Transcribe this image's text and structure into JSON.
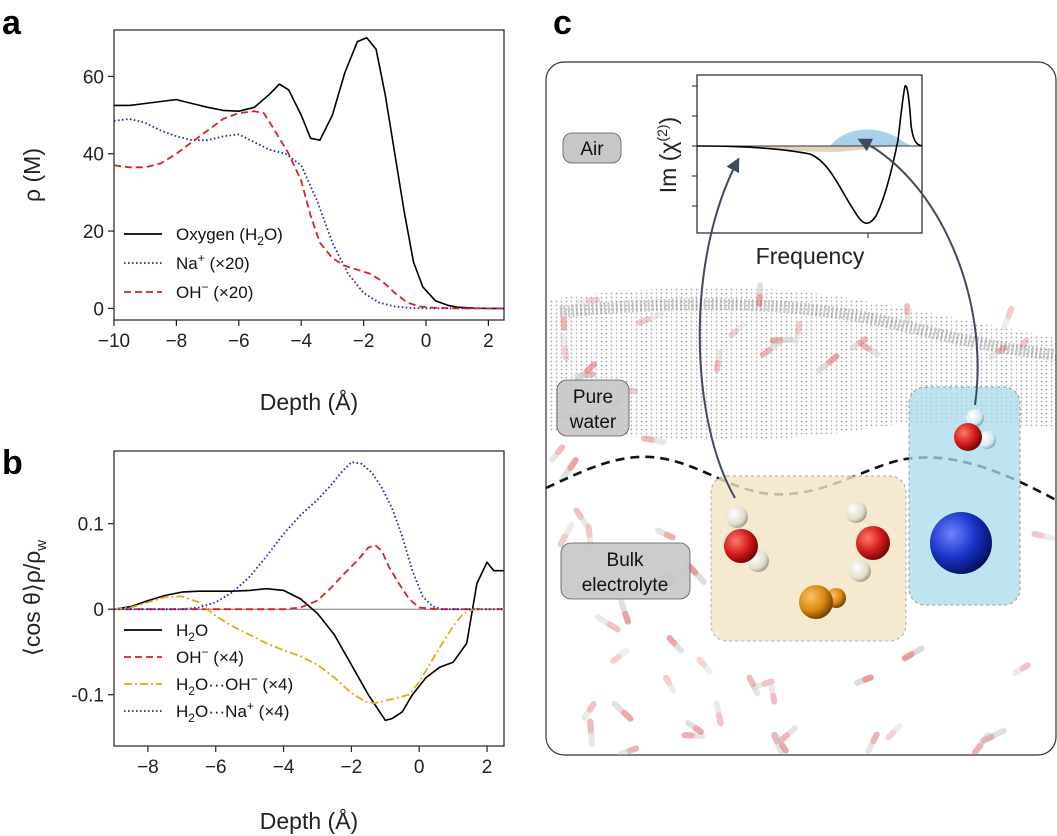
{
  "panels": {
    "a": "a",
    "b": "b",
    "c": "c"
  },
  "chart_data": [
    {
      "panel": "a",
      "type": "line",
      "ylabel": "ρ (M)",
      "xlabel": "Depth (Å)",
      "xlim": [
        -10,
        2.5
      ],
      "ylim": [
        -3,
        72
      ],
      "xticks": [
        -10,
        -8,
        -6,
        -4,
        -2,
        0,
        2
      ],
      "xtick_labels": [
        "−10",
        "−8",
        "−6",
        "−4",
        "−2",
        "0",
        "2"
      ],
      "yticks": [
        0,
        20,
        40,
        60
      ],
      "ytick_labels": [
        "0",
        "20",
        "40",
        "60"
      ],
      "legend_position": "lower-left",
      "series": [
        {
          "name": "Oxygen (H",
          "name_sub": "2",
          "name_end": "O)",
          "color": "#000000",
          "dash": "solid",
          "x": [
            -10,
            -9.5,
            -9,
            -8.5,
            -8,
            -7.5,
            -7,
            -6.5,
            -6,
            -5.5,
            -5,
            -4.7,
            -4.4,
            -4,
            -3.7,
            -3.4,
            -3,
            -2.6,
            -2.2,
            -1.9,
            -1.6,
            -1.3,
            -1,
            -0.7,
            -0.4,
            -0.1,
            0.3,
            0.7,
            1.0,
            1.5,
            2,
            2.5
          ],
          "y": [
            52.5,
            52.5,
            53,
            53.5,
            54,
            53,
            52,
            51.2,
            51,
            52,
            55.5,
            58,
            56.5,
            50,
            44,
            43.5,
            50,
            61,
            69,
            70,
            67,
            55,
            40,
            25,
            12,
            5.5,
            2,
            0.8,
            0.3,
            0.1,
            0,
            0
          ]
        },
        {
          "name": "Na",
          "name_sup": "+",
          "name_end": " (×20)",
          "color": "#1f2fb5",
          "dash": "dotted",
          "x": [
            -10,
            -9.5,
            -9,
            -8.5,
            -8,
            -7.5,
            -7,
            -6.5,
            -6,
            -5.5,
            -5,
            -4.5,
            -4,
            -3.5,
            -3,
            -2.5,
            -2,
            -1.5,
            -1,
            -0.5,
            0,
            0.5,
            1,
            2.5
          ],
          "y": [
            48.5,
            49,
            48,
            46,
            44.5,
            43.5,
            43.5,
            44.5,
            45,
            43,
            41,
            40,
            37,
            28,
            17,
            9,
            4,
            1.5,
            0.5,
            0.1,
            0,
            0,
            0,
            0
          ]
        },
        {
          "name": "OH",
          "name_sup": "−",
          "name_end": " (×20)",
          "color": "#d9202a",
          "dash": "dashed",
          "x": [
            -10,
            -9.5,
            -9,
            -8.5,
            -8,
            -7.5,
            -7,
            -6.5,
            -6,
            -5.5,
            -5.2,
            -5,
            -4.7,
            -4.4,
            -4,
            -3.7,
            -3.4,
            -3,
            -2.6,
            -2.2,
            -1.8,
            -1.4,
            -1,
            -0.6,
            -0.2,
            0.2,
            0.6,
            1,
            1.5,
            2.5
          ],
          "y": [
            37,
            36.5,
            36.5,
            37.5,
            40,
            43,
            46,
            49,
            50.5,
            51,
            50.5,
            48,
            44,
            40,
            33,
            24,
            17,
            13,
            11,
            10,
            9,
            7,
            4,
            1.5,
            0.5,
            0.2,
            0.1,
            0,
            0,
            0
          ]
        }
      ]
    },
    {
      "panel": "b",
      "type": "line",
      "ylabel": "⟨cos θ⟩ρ/ρ",
      "ylabel_sub": "w",
      "xlabel": "Depth (Å)",
      "xlim": [
        -9,
        2.5
      ],
      "ylim": [
        -0.16,
        0.185
      ],
      "xticks": [
        -8,
        -6,
        -4,
        -2,
        0,
        2
      ],
      "xtick_labels": [
        "−8",
        "−6",
        "−4",
        "−2",
        "0",
        "2"
      ],
      "yticks": [
        -0.1,
        0,
        0.1
      ],
      "ytick_labels": [
        "-0.1",
        "0",
        "0.1"
      ],
      "legend_position": "lower-left",
      "series": [
        {
          "name": "H",
          "name_sub": "2",
          "name_end": "O",
          "color": "#000000",
          "dash": "solid",
          "x": [
            -9,
            -8.5,
            -8,
            -7.5,
            -7,
            -6.5,
            -6,
            -5.5,
            -5,
            -4.5,
            -4,
            -3.5,
            -3,
            -2.5,
            -2,
            -1.5,
            -1.2,
            -1,
            -0.8,
            -0.5,
            -0.2,
            0.2,
            0.6,
            1,
            1.4,
            1.7,
            2,
            2.2,
            2.5
          ],
          "y": [
            0,
            0.003,
            0.01,
            0.016,
            0.02,
            0.021,
            0.021,
            0.021,
            0.022,
            0.024,
            0.022,
            0.012,
            -0.005,
            -0.03,
            -0.065,
            -0.1,
            -0.118,
            -0.13,
            -0.128,
            -0.12,
            -0.1,
            -0.08,
            -0.068,
            -0.062,
            -0.04,
            0.03,
            0.055,
            0.045,
            0.045
          ]
        },
        {
          "name": "OH",
          "name_sup": "−",
          "name_end": " (×4)",
          "color": "#d9202a",
          "dash": "dashed",
          "x": [
            -9,
            -8,
            -7,
            -6,
            -5,
            -4,
            -3.5,
            -3,
            -2.6,
            -2.2,
            -1.8,
            -1.5,
            -1.3,
            -1.1,
            -0.9,
            -0.6,
            -0.3,
            0,
            0.5,
            2.5
          ],
          "y": [
            0,
            0,
            0,
            0,
            0,
            0,
            0.002,
            0.01,
            0.025,
            0.042,
            0.058,
            0.072,
            0.075,
            0.068,
            0.05,
            0.03,
            0.012,
            0.002,
            0,
            0
          ]
        },
        {
          "name": "H",
          "name_sub": "2",
          "name_end": "O···OH",
          "name_sup": "−",
          "name_end2": " (×4)",
          "color": "#e6a817",
          "dash": "dashdot",
          "x": [
            -9,
            -8.5,
            -8,
            -7.5,
            -7,
            -6.5,
            -6,
            -5.5,
            -5,
            -4.5,
            -4,
            -3.5,
            -3,
            -2.5,
            -2,
            -1.6,
            -1.3,
            -1,
            -0.6,
            -0.3,
            0,
            0.3,
            0.6,
            1,
            1.3,
            1.6,
            2.5
          ],
          "y": [
            0,
            0.002,
            0.008,
            0.014,
            0.015,
            0.008,
            -0.008,
            -0.02,
            -0.03,
            -0.04,
            -0.048,
            -0.055,
            -0.065,
            -0.08,
            -0.098,
            -0.108,
            -0.11,
            -0.107,
            -0.103,
            -0.1,
            -0.085,
            -0.065,
            -0.045,
            -0.02,
            -0.005,
            0,
            0
          ]
        },
        {
          "name": "H",
          "name_sub": "2",
          "name_end": "O···Na",
          "name_sup": "+",
          "name_end2": " (×4)",
          "color": "#1f2fb5",
          "dash": "dotted",
          "x": [
            -9,
            -8,
            -7,
            -6.5,
            -6,
            -5.5,
            -5,
            -4.5,
            -4,
            -3.5,
            -3,
            -2.6,
            -2.3,
            -2,
            -1.7,
            -1.4,
            -1.1,
            -0.8,
            -0.5,
            -0.2,
            0.1,
            0.4,
            0.7,
            1,
            1.3,
            2.5
          ],
          "y": [
            0,
            0,
            0,
            0.002,
            0.008,
            0.02,
            0.038,
            0.062,
            0.088,
            0.11,
            0.128,
            0.145,
            0.16,
            0.172,
            0.17,
            0.16,
            0.142,
            0.118,
            0.085,
            0.045,
            0.015,
            0.003,
            0,
            0,
            0,
            0
          ]
        }
      ]
    }
  ],
  "panel_c": {
    "inset": {
      "ylabel": "Im (χ",
      "ylabel_sup": "(2)",
      "ylabel_end": ")",
      "xlabel": "Frequency"
    },
    "regions": {
      "air": "Air",
      "pure_water_1": "Pure",
      "pure_water_2": "water",
      "bulk_1": "Bulk",
      "bulk_2": "electrolyte"
    },
    "colors": {
      "oh_box": "#f3e3c3",
      "na_box": "#a8dcea",
      "oxygen": "#d01818",
      "hydrogen": "#e8e2d2",
      "sodium": "#1a33c8",
      "oh_ion": "#d8860e",
      "blue_fill": "#9cc9e6",
      "tan_fill": "#dcc8ac"
    }
  }
}
